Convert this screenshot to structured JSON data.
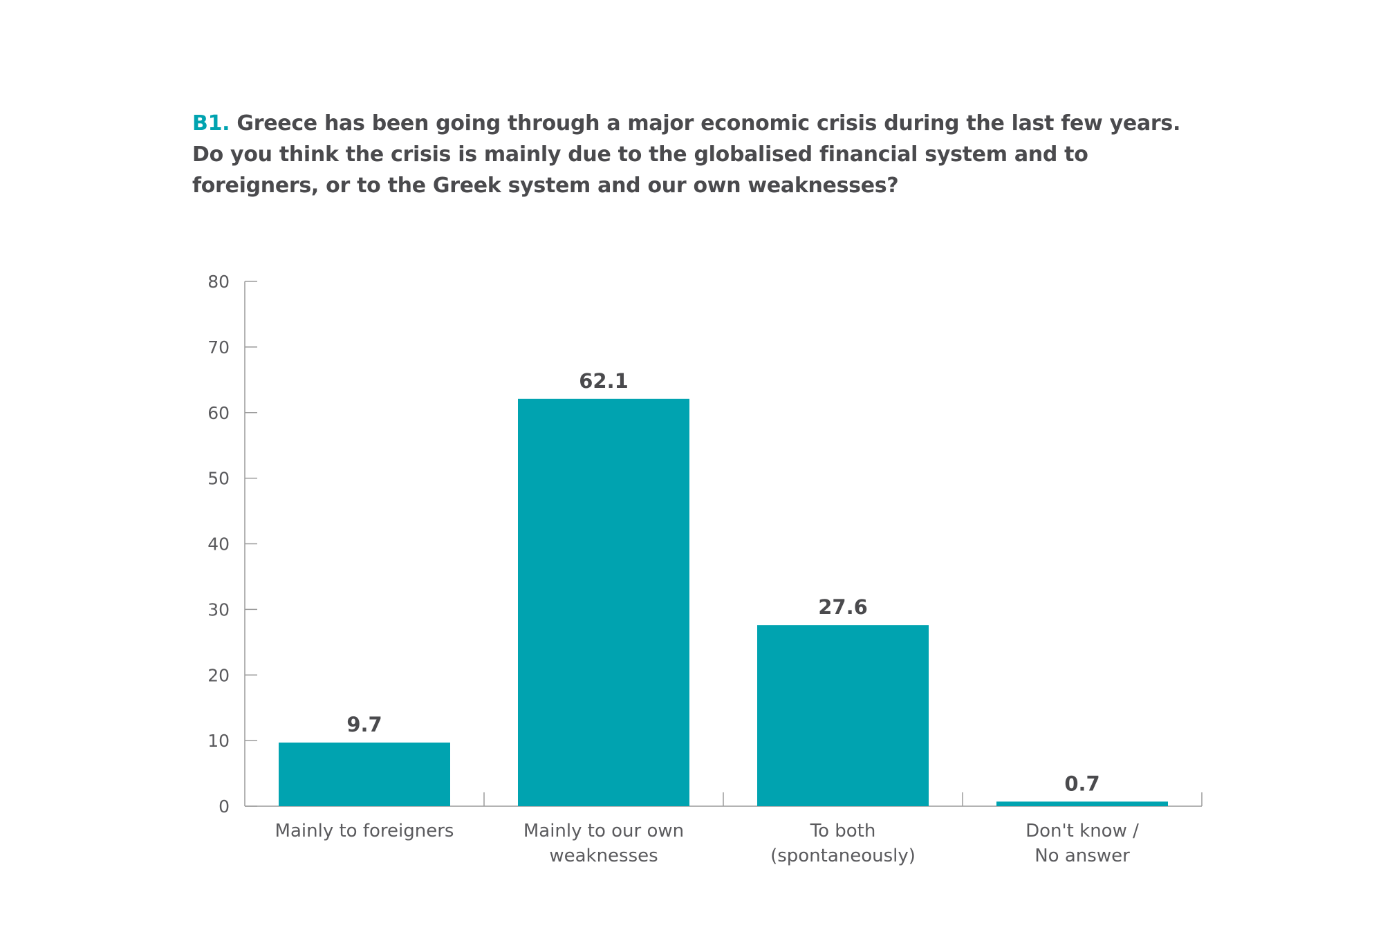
{
  "question": {
    "id": "B1.",
    "text": "Greece has been going through a major economic crisis during the last few years. Do you think the crisis is mainly due to the globalised financial system and to foreigners, or to the Greek system and our own weaknesses?"
  },
  "colors": {
    "bar": "#00a3b0",
    "question_id": "#00a3b0",
    "text": "#4a4a4d",
    "axis": "#9a9a9a"
  },
  "chart_data": {
    "type": "bar",
    "title": "",
    "xlabel": "",
    "ylabel": "",
    "ylim": [
      0,
      80
    ],
    "yticks": [
      0,
      10,
      20,
      30,
      40,
      50,
      60,
      70,
      80
    ],
    "categories": [
      [
        "Mainly to foreigners"
      ],
      [
        "Mainly to our own",
        "weaknesses"
      ],
      [
        "To both",
        "(spontaneously)"
      ],
      [
        "Don't know /",
        "No answer"
      ]
    ],
    "values": [
      9.7,
      62.1,
      27.6,
      0.7
    ],
    "value_labels": [
      "9.7",
      "62.1",
      "27.6",
      "0.7"
    ],
    "grid": false,
    "legend": "none"
  }
}
